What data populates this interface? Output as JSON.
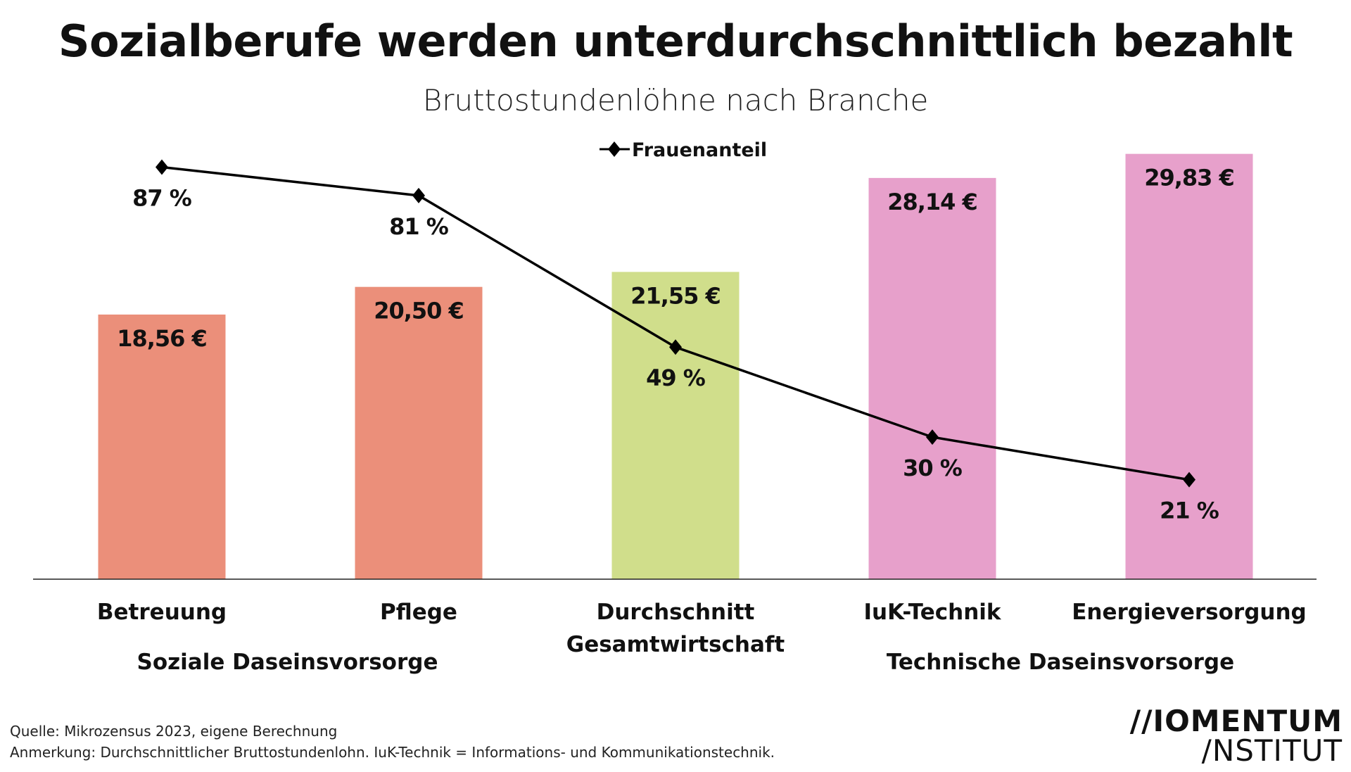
{
  "chart_data": {
    "type": "bar",
    "title": "Sozialberufe werden unterdurchschnittlich bezahlt",
    "subtitle": "Bruttostundenlöhne nach Branche",
    "categories": [
      "Betreuung",
      "Pflege",
      "Durchschnitt Gesamtwirtschaft",
      "IuK-Technik",
      "Energieversorgung"
    ],
    "category_lines": [
      [
        "Betreuung"
      ],
      [
        "Pflege"
      ],
      [
        "Durchschnitt",
        "Gesamtwirtschaft"
      ],
      [
        "IuK-Technik"
      ],
      [
        "Energieversorgung"
      ]
    ],
    "bar_values": [
      18.56,
      20.5,
      21.55,
      28.14,
      29.83
    ],
    "bar_labels": [
      "18,56 €",
      "20,50 €",
      "21,55 €",
      "28,14 €",
      "29,83 €"
    ],
    "bar_colors": [
      "#eb8f7a",
      "#eb8f7a",
      "#d0de8b",
      "#e7a0cb",
      "#e7a0cb"
    ],
    "series": [
      {
        "name": "Frauenanteil",
        "type": "line",
        "values": [
          87,
          81,
          49,
          30,
          21
        ],
        "labels": [
          "87 %",
          "81 %",
          "49 %",
          "30 %",
          "21 %"
        ],
        "color": "#000000",
        "marker": "diamond"
      }
    ],
    "legend_position": "top-center",
    "grid": false,
    "groups": [
      {
        "label": "Soziale Daseinsvorsorge",
        "color": "#eb8f7a"
      },
      {
        "label": "Technische Daseinsvorsorge",
        "color": "#e7a0cb"
      }
    ]
  },
  "footer": {
    "source": "Quelle: Mikrozensus 2023, eigene Berechnung",
    "note": "Anmerkung: Durchschnittlicher Bruttostundenlohn. IuK-Technik = Informations- und Kommunikationstechnik."
  },
  "logo": {
    "line1": "//IOMENTUM",
    "line2": "/NSTITUT"
  }
}
